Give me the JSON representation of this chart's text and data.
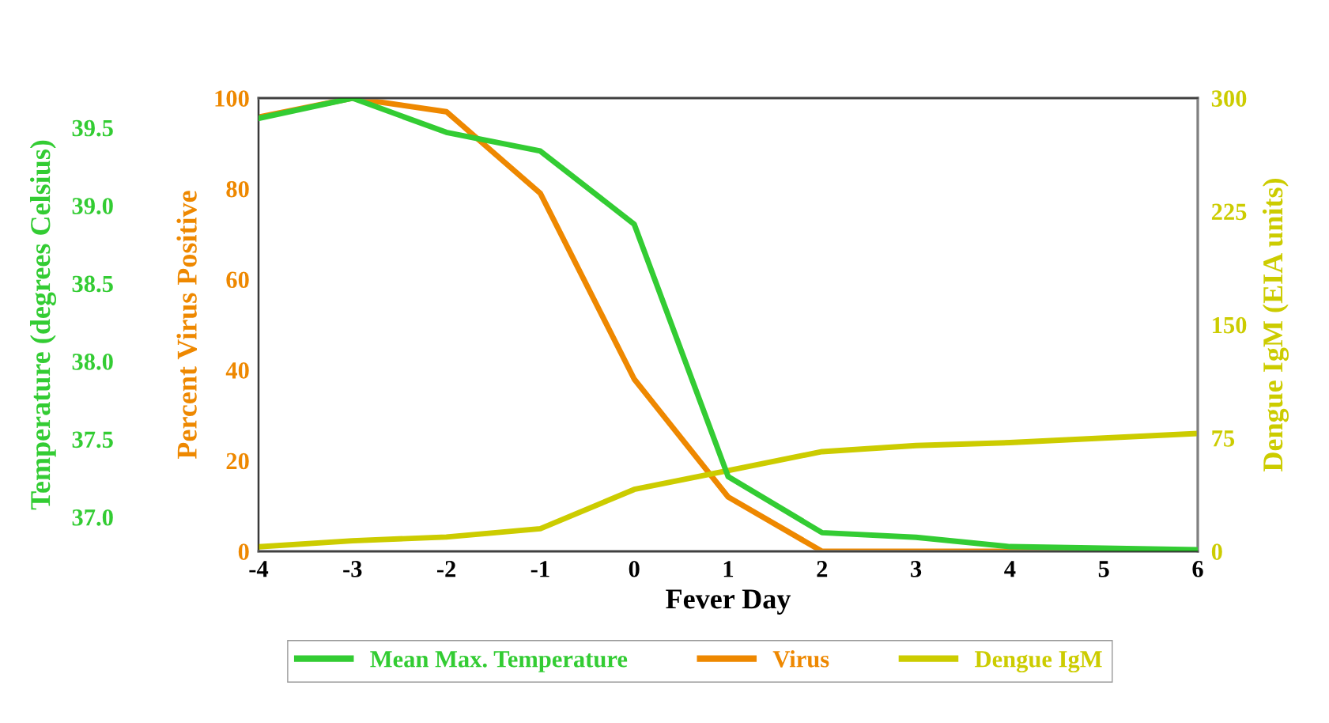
{
  "chart_data": {
    "type": "line",
    "xlabel": "Fever Day",
    "ylabel": "Percent Virus Positive",
    "y2label": "Dengue IgM (EIA units)",
    "y3label": "Temperature (degrees Celsius)",
    "x": [
      -4,
      -3,
      -2,
      -1,
      0,
      1,
      2,
      3,
      4,
      5,
      6
    ],
    "xlim": [
      -4,
      6
    ],
    "xticks": [
      -4,
      -3,
      -2,
      -1,
      0,
      1,
      2,
      3,
      4,
      5,
      6
    ],
    "ylim": [
      0,
      100
    ],
    "yticks": [
      0,
      20,
      40,
      60,
      80,
      100
    ],
    "y2lim": [
      0,
      300
    ],
    "y2ticks": [
      0,
      75,
      150,
      225,
      300
    ],
    "y3lim": [
      36.78,
      39.69
    ],
    "y3ticks": [
      {
        "value": 37.0,
        "label": "37.0"
      },
      {
        "value": 37.5,
        "label": "37.5"
      },
      {
        "value": 38.0,
        "label": "38.0"
      },
      {
        "value": 38.5,
        "label": "38.5"
      },
      {
        "value": 39.0,
        "label": "39.0"
      },
      {
        "value": 39.5,
        "label": "39.5"
      }
    ],
    "grid": false,
    "legend": "bottom",
    "marker": "none",
    "line_style": "solid",
    "series": [
      {
        "name": "Mean Max. Temperature",
        "color": "#33cc33",
        "axis": "y3",
        "values": [
          39.56,
          39.69,
          39.47,
          39.35,
          38.88,
          37.26,
          36.9,
          36.87,
          36.81,
          36.8,
          36.79
        ]
      },
      {
        "name": "Virus",
        "color": "#ee8800",
        "values": [
          95.8,
          100,
          97,
          79,
          38,
          12,
          0,
          0,
          0,
          0,
          0
        ]
      },
      {
        "name": "Dengue IgM",
        "color": "#cccc00",
        "axis": "y2",
        "values": [
          3,
          7,
          9.5,
          15,
          41,
          53.5,
          66,
          70,
          72,
          75,
          78
        ]
      }
    ]
  }
}
